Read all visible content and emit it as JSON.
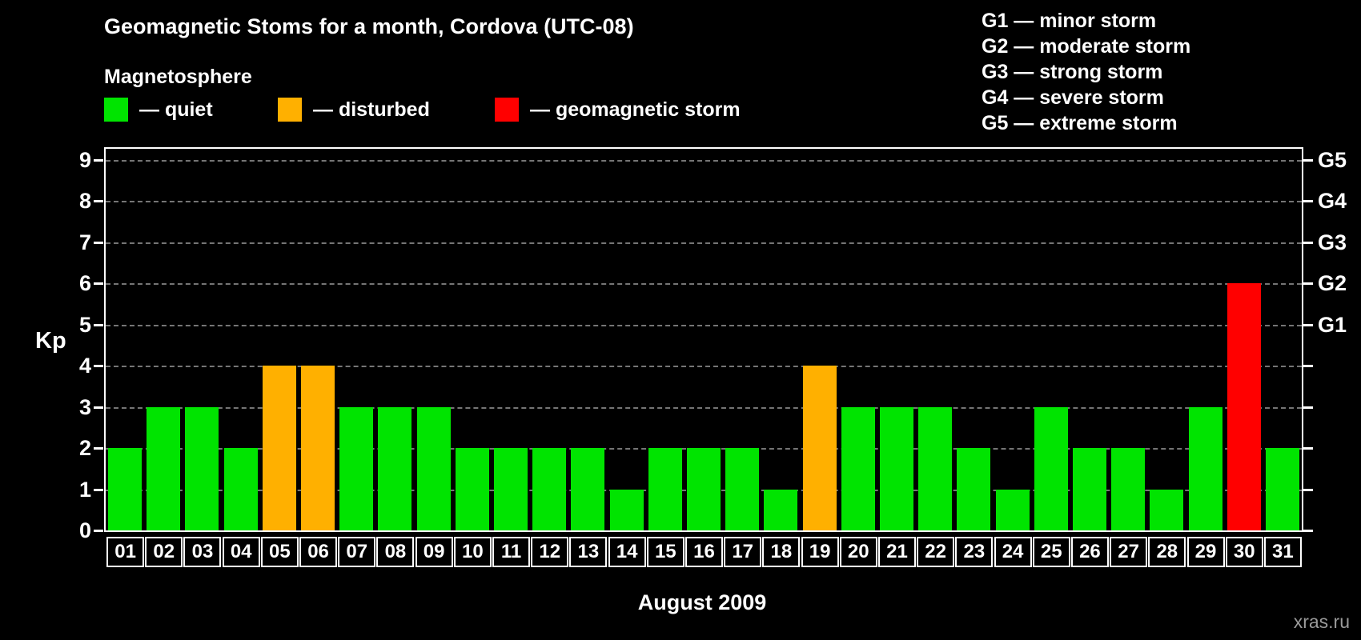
{
  "title": "Geomagnetic Stoms for a month, Cordova (UTC-08)",
  "subtitle": "Magnetosphere",
  "legend": {
    "items": [
      {
        "label": "— quiet",
        "status": "quiet"
      },
      {
        "label": "— disturbed",
        "status": "disturbed"
      },
      {
        "label": "— geomagnetic storm",
        "status": "storm"
      }
    ]
  },
  "storm_scale": [
    "G1 — minor storm",
    "G2 — moderate storm",
    "G3 — strong storm",
    "G4 — severe storm",
    "G5 — extreme storm"
  ],
  "colors": {
    "quiet": "#00e400",
    "disturbed": "#ffb000",
    "storm": "#ff0000",
    "background": "#000000",
    "text": "#ffffff",
    "grid": "#757575",
    "watermark": "#9a9a9a"
  },
  "watermark": "xras.ru",
  "chart_data": {
    "type": "bar",
    "title": "Geomagnetic Stoms for a month, Cordova (UTC-08)",
    "xlabel": "August 2009",
    "ylabel": "Kp",
    "ylim": [
      0,
      9
    ],
    "yticks": [
      0,
      1,
      2,
      3,
      4,
      5,
      6,
      7,
      8,
      9
    ],
    "grid": "horizontal-dashed",
    "legend_position": "top-left",
    "categories": [
      "01",
      "02",
      "03",
      "04",
      "05",
      "06",
      "07",
      "08",
      "09",
      "10",
      "11",
      "12",
      "13",
      "14",
      "15",
      "16",
      "17",
      "18",
      "19",
      "20",
      "21",
      "22",
      "23",
      "24",
      "25",
      "26",
      "27",
      "28",
      "29",
      "30",
      "31"
    ],
    "values": [
      2,
      3,
      3,
      2,
      4,
      4,
      3,
      3,
      3,
      2,
      2,
      2,
      2,
      1,
      2,
      2,
      2,
      1,
      4,
      3,
      3,
      3,
      2,
      1,
      3,
      2,
      2,
      1,
      3,
      6,
      2
    ],
    "statuses": [
      "quiet",
      "quiet",
      "quiet",
      "quiet",
      "disturbed",
      "disturbed",
      "quiet",
      "quiet",
      "quiet",
      "quiet",
      "quiet",
      "quiet",
      "quiet",
      "quiet",
      "quiet",
      "quiet",
      "quiet",
      "quiet",
      "disturbed",
      "quiet",
      "quiet",
      "quiet",
      "quiet",
      "quiet",
      "quiet",
      "quiet",
      "quiet",
      "quiet",
      "quiet",
      "storm",
      "quiet"
    ],
    "right_axis_labels": [
      {
        "label": "G1",
        "kp": 5
      },
      {
        "label": "G2",
        "kp": 6
      },
      {
        "label": "G3",
        "kp": 7
      },
      {
        "label": "G4",
        "kp": 8
      },
      {
        "label": "G5",
        "kp": 9
      }
    ]
  }
}
